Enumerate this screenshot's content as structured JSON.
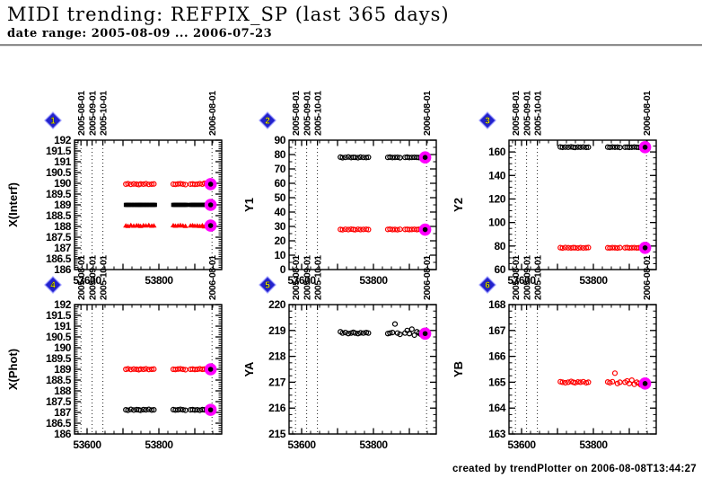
{
  "header": {
    "title": "MIDI trending: REFPIX_SP (last 365 days)",
    "subtitle": "date range: 2005-08-09 ... 2006-07-23"
  },
  "footer": {
    "credit": "created by trendPlotter on 2006-08-08T13:44:27"
  },
  "colors": {
    "red": "#ff0000",
    "black": "#000000",
    "highlight": "#ff00ff",
    "badge_fill": "#2222cc",
    "badge_edge": "#9999ff",
    "badge_text": "#ffff00",
    "month_line": "#222222"
  },
  "chart_data": {
    "type": "scatter",
    "grid": false,
    "xlim": [
      53565,
      53975
    ],
    "xticks_major": [
      53600,
      53700,
      53800,
      53900
    ],
    "x_minor_step": 25,
    "xtick_labels": [
      {
        "v": 53600,
        "label": "53600"
      },
      {
        "v": 53800,
        "label": "53800"
      }
    ],
    "month_lines": [
      {
        "v": 53583,
        "label": "2005-08-01"
      },
      {
        "v": 53614,
        "label": "2005-09-01"
      },
      {
        "v": 53644,
        "label": "2005-10-01"
      },
      {
        "v": 53948,
        "label": "2006-08-01"
      }
    ],
    "highlight_x": 53944,
    "common_x": [
      53708,
      53714,
      53722,
      53730,
      53738,
      53744,
      53749,
      53757,
      53764,
      53772,
      53780,
      53786,
      53840,
      53846,
      53853,
      53860,
      53867,
      53874,
      53888,
      53894,
      53900,
      53907,
      53914,
      53921,
      53927,
      53932,
      53937
    ],
    "panels": [
      {
        "badge": "1",
        "ylabel": "X(Interf)",
        "ylim": [
          186,
          192
        ],
        "y_minor": 0.1,
        "ytick_vals": [
          186,
          186.5,
          187,
          187.5,
          188,
          188.5,
          189,
          189.5,
          190,
          190.5,
          191,
          191.5,
          192
        ],
        "ytick_labels": [
          "186",
          "186.5",
          "187",
          "187.5",
          "188",
          "188.5",
          "189",
          "189.5",
          "190",
          "190.5",
          "191",
          "191.5",
          "192"
        ],
        "series": [
          {
            "name": "red-circles",
            "marker": "circle",
            "color": "#ff0000",
            "y": [
              189.96,
              189.98,
              189.95,
              189.97,
              189.96,
              189.94,
              189.97,
              189.96,
              189.98,
              189.95,
              189.96,
              189.97,
              189.96,
              189.95,
              189.97,
              189.98,
              189.96,
              189.94,
              189.96,
              189.97,
              189.95,
              189.96,
              189.98,
              189.96,
              190.0,
              189.97,
              189.96
            ]
          },
          {
            "name": "black-squares",
            "marker": "square",
            "color": "#000000",
            "x": [
              53708,
              53711,
              53714,
              53717,
              53722,
              53725,
              53730,
              53733,
              53738,
              53741,
              53744,
              53747,
              53749,
              53752,
              53757,
              53760,
              53764,
              53767,
              53772,
              53775,
              53780,
              53783,
              53786,
              53789,
              53840,
              53843,
              53846,
              53849,
              53853,
              53856,
              53860,
              53863,
              53867,
              53870,
              53874,
              53877,
              53888,
              53891,
              53894,
              53897,
              53900,
              53903,
              53907,
              53910,
              53914,
              53917,
              53921,
              53924,
              53927,
              53930,
              53932,
              53935,
              53937,
              53940
            ],
            "y_const": 189.0
          },
          {
            "name": "red-triangles",
            "marker": "triangle",
            "color": "#ff0000",
            "y": [
              188.04,
              188.02,
              188.06,
              188.03,
              188.05,
              188.04,
              188.02,
              188.05,
              188.04,
              188.06,
              188.03,
              188.04,
              188.05,
              188.03,
              188.04,
              188.06,
              188.04,
              188.02,
              188.04,
              188.05,
              188.03,
              188.04,
              188.02,
              188.05,
              188.0,
              188.04,
              188.03
            ]
          }
        ],
        "highlight_y": [
          189.96,
          189.0,
          188.04
        ]
      },
      {
        "badge": "2",
        "ylabel": "Y1",
        "ylim": [
          0,
          90
        ],
        "y_minor": 5,
        "ytick_vals": [
          0,
          10,
          20,
          30,
          40,
          50,
          60,
          70,
          80,
          90
        ],
        "ytick_labels": [
          "0",
          "10",
          "20",
          "30",
          "40",
          "50",
          "60",
          "70",
          "80",
          "90"
        ],
        "series": [
          {
            "name": "black-circles",
            "marker": "circle",
            "color": "#000000",
            "y": [
              78.2,
              77.8,
              78.0,
              78.3,
              77.9,
              78.1,
              78.0,
              77.8,
              78.2,
              78.0,
              77.9,
              78.1,
              78.0,
              78.2,
              77.9,
              78.0,
              78.1,
              77.8,
              78.0,
              78.2,
              77.9,
              78.0,
              78.1,
              78.0,
              77.9,
              78.0,
              78.1
            ]
          },
          {
            "name": "red-circles",
            "marker": "circle",
            "color": "#ff0000",
            "y": [
              27.9,
              27.7,
              28.0,
              27.8,
              28.1,
              27.9,
              27.7,
              28.0,
              27.8,
              27.9,
              28.0,
              27.8,
              27.9,
              28.1,
              27.8,
              27.9,
              27.7,
              28.0,
              27.9,
              28.0,
              27.8,
              27.9,
              28.0,
              27.8,
              28.0,
              27.9,
              27.8
            ]
          }
        ],
        "highlight_y": [
          78.0,
          27.8
        ]
      },
      {
        "badge": "3",
        "ylabel": "Y2",
        "ylim": [
          60,
          170
        ],
        "y_minor": 5,
        "ytick_vals": [
          60,
          80,
          100,
          120,
          140,
          160
        ],
        "ytick_labels": [
          "60",
          "80",
          "100",
          "120",
          "140",
          "160"
        ],
        "series": [
          {
            "name": "black-circles",
            "marker": "circle",
            "color": "#000000",
            "y": [
              164.2,
              163.9,
              164.1,
              164.0,
              164.3,
              164.0,
              163.8,
              164.1,
              164.0,
              164.2,
              163.9,
              164.0,
              164.1,
              163.9,
              164.2,
              164.0,
              164.1,
              163.8,
              164.0,
              164.1,
              163.9,
              164.0,
              164.2,
              164.0,
              163.9,
              164.1,
              164.0
            ]
          },
          {
            "name": "red-circles",
            "marker": "circle",
            "color": "#ff0000",
            "y": [
              78.6,
              78.3,
              78.7,
              78.5,
              78.4,
              78.6,
              78.5,
              78.3,
              78.6,
              78.4,
              78.5,
              78.7,
              78.5,
              78.4,
              78.6,
              78.5,
              78.3,
              78.6,
              78.5,
              78.7,
              78.4,
              78.5,
              78.6,
              78.4,
              78.5,
              78.6,
              78.5
            ]
          }
        ],
        "highlight_y": [
          164.0,
          78.5
        ]
      },
      {
        "badge": "4",
        "ylabel": "X(Phot)",
        "ylim": [
          186,
          192
        ],
        "y_minor": 0.1,
        "ytick_vals": [
          186,
          186.5,
          187,
          187.5,
          188,
          188.5,
          189,
          189.5,
          190,
          190.5,
          191,
          191.5,
          192
        ],
        "ytick_labels": [
          "186",
          "186.5",
          "187",
          "187.5",
          "188",
          "188.5",
          "189",
          "189.5",
          "190",
          "190.5",
          "191",
          "191.5",
          "192"
        ],
        "series": [
          {
            "name": "red-circles",
            "marker": "circle",
            "color": "#ff0000",
            "y": [
              189.0,
              189.02,
              188.99,
              189.01,
              189.0,
              188.98,
              189.01,
              189.0,
              189.02,
              188.99,
              189.0,
              189.01,
              189.0,
              188.99,
              189.01,
              189.02,
              189.0,
              188.98,
              189.0,
              189.01,
              188.99,
              189.0,
              189.02,
              189.0,
              189.01,
              189.0,
              188.99
            ]
          },
          {
            "name": "black-circles",
            "marker": "circle",
            "color": "#000000",
            "y": [
              187.12,
              187.1,
              187.14,
              187.11,
              187.13,
              187.12,
              187.1,
              187.13,
              187.12,
              187.14,
              187.11,
              187.12,
              187.13,
              187.11,
              187.12,
              187.14,
              187.12,
              187.1,
              187.12,
              187.13,
              187.11,
              187.12,
              187.1,
              187.13,
              187.12,
              187.11,
              187.13
            ]
          }
        ],
        "highlight_y": [
          189.0,
          187.12
        ]
      },
      {
        "badge": "5",
        "ylabel": "YA",
        "ylim": [
          215,
          220
        ],
        "y_minor": 0.25,
        "ytick_vals": [
          215,
          216,
          217,
          218,
          219,
          220
        ],
        "ytick_labels": [
          "215",
          "216",
          "217",
          "218",
          "219",
          "220"
        ],
        "series": [
          {
            "name": "black-circles",
            "marker": "circle",
            "color": "#000000",
            "y": [
              218.95,
              218.9,
              218.92,
              218.88,
              218.9,
              218.93,
              218.9,
              218.88,
              218.91,
              218.9,
              218.92,
              218.9,
              218.88,
              218.9,
              218.92,
              219.25,
              218.9,
              218.85,
              218.9,
              219.0,
              218.88,
              219.05,
              218.82,
              218.95,
              218.9,
              218.85,
              218.88
            ]
          }
        ],
        "highlight_y": [
          218.88
        ]
      },
      {
        "badge": "6",
        "ylabel": "YB",
        "ylim": [
          163,
          168
        ],
        "y_minor": 0.25,
        "ytick_vals": [
          163,
          164,
          165,
          166,
          167,
          168
        ],
        "ytick_labels": [
          "163",
          "164",
          "165",
          "166",
          "167",
          "168"
        ],
        "series": [
          {
            "name": "red-circles",
            "marker": "circle",
            "color": "#ff0000",
            "y": [
              165.02,
              165.0,
              164.98,
              165.0,
              165.03,
              165.0,
              164.98,
              165.01,
              165.0,
              165.02,
              164.98,
              165.0,
              165.01,
              164.98,
              165.02,
              165.35,
              164.95,
              165.0,
              165.0,
              165.05,
              164.95,
              165.08,
              164.92,
              165.0,
              164.96,
              164.9,
              164.94
            ]
          }
        ],
        "highlight_y": [
          164.95
        ]
      }
    ]
  }
}
